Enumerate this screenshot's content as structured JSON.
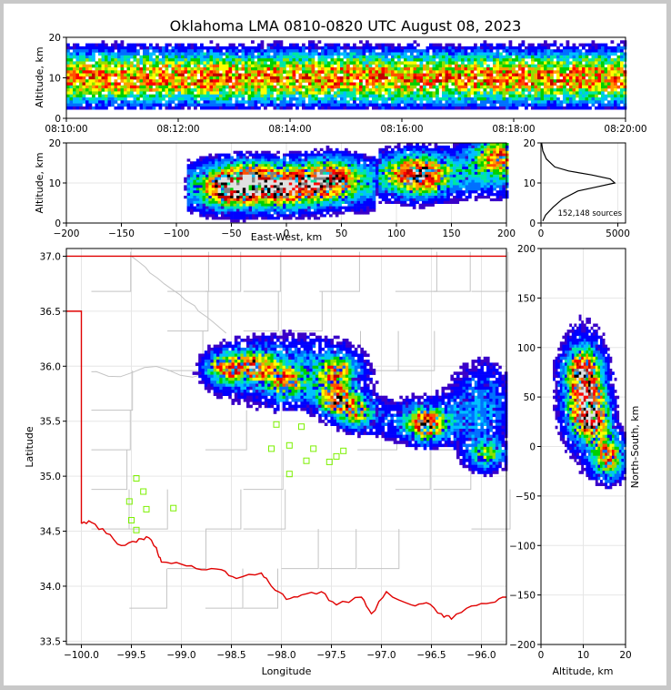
{
  "chart_data": [
    {
      "type": "heatmap",
      "panel": "time-altitude",
      "title": "Oklahoma LMA 0810-0820 UTC August 08, 2023",
      "ylabel": "Altitude, km",
      "xticks": [
        "08:10:00",
        "08:12:00",
        "08:14:00",
        "08:16:00",
        "08:18:00",
        "08:20:00"
      ],
      "yticks": [
        "0",
        "10",
        "20"
      ],
      "ylim": [
        0,
        20
      ],
      "band_center_km": 10,
      "band_halfwidth_km": 8
    },
    {
      "type": "heatmap",
      "panel": "east-west-altitude",
      "xlabel": "East-West, km",
      "ylabel": "Altitude, km",
      "xticks": [
        "−200",
        "−150",
        "−100",
        "−50",
        "0",
        "50",
        "100",
        "150",
        "200"
      ],
      "yticks": [
        "0",
        "10",
        "20"
      ],
      "xlim": [
        -200,
        200
      ],
      "ylim": [
        0,
        20
      ],
      "cores": [
        {
          "x": -52,
          "z": 9,
          "intensity": 0.95
        },
        {
          "x": -28,
          "z": 10,
          "intensity": 0.9
        },
        {
          "x": 5,
          "z": 9,
          "intensity": 0.85
        },
        {
          "x": 40,
          "z": 11,
          "intensity": 1.0
        },
        {
          "x": 120,
          "z": 12,
          "intensity": 1.0
        },
        {
          "x": 195,
          "z": 17,
          "intensity": 0.8
        }
      ]
    },
    {
      "type": "line",
      "panel": "altitude-histogram",
      "xticks": [
        "0",
        "5000"
      ],
      "yticks": [
        "0",
        "10",
        "20"
      ],
      "xlim": [
        0,
        5500
      ],
      "ylim": [
        0,
        20
      ],
      "annotation": "152,148 sources",
      "profile": [
        {
          "z": 0.5,
          "n": 120
        },
        {
          "z": 2,
          "n": 300
        },
        {
          "z": 4,
          "n": 800
        },
        {
          "z": 6,
          "n": 1400
        },
        {
          "z": 8,
          "n": 2400
        },
        {
          "z": 9,
          "n": 3600
        },
        {
          "z": 10,
          "n": 4800
        },
        {
          "z": 11,
          "n": 4500
        },
        {
          "z": 12,
          "n": 3300
        },
        {
          "z": 13,
          "n": 1800
        },
        {
          "z": 14,
          "n": 900
        },
        {
          "z": 16,
          "n": 350
        },
        {
          "z": 18,
          "n": 120
        },
        {
          "z": 20,
          "n": 40
        }
      ]
    },
    {
      "type": "heatmap",
      "panel": "plan-view",
      "xlabel": "Longitude",
      "ylabel": "Latitude",
      "xticks": [
        "−100.0",
        "−99.5",
        "−99.0",
        "−98.5",
        "−98.0",
        "−97.5",
        "−97.0",
        "−96.5",
        "−96.0"
      ],
      "yticks": [
        "33.5",
        "34.0",
        "34.5",
        "35.0",
        "35.5",
        "36.0",
        "36.5",
        "37.0"
      ],
      "xlim": [
        -100.15,
        -95.75
      ],
      "ylim": [
        33.47,
        37.07
      ],
      "cores": [
        {
          "lon": -98.55,
          "lat": 35.98,
          "intensity": 0.95
        },
        {
          "lon": -98.25,
          "lat": 36.0,
          "intensity": 0.9
        },
        {
          "lon": -97.95,
          "lat": 35.85,
          "intensity": 0.7
        },
        {
          "lon": -97.45,
          "lat": 35.95,
          "intensity": 0.8
        },
        {
          "lon": -97.45,
          "lat": 35.7,
          "intensity": 1.0
        },
        {
          "lon": -97.25,
          "lat": 35.58,
          "intensity": 0.75
        },
        {
          "lon": -96.55,
          "lat": 35.47,
          "intensity": 1.0
        },
        {
          "lon": -95.95,
          "lat": 35.2,
          "intensity": 0.6
        }
      ],
      "stations": [
        {
          "lon": -98.05,
          "lat": 35.47
        },
        {
          "lon": -97.8,
          "lat": 35.45
        },
        {
          "lon": -98.1,
          "lat": 35.25
        },
        {
          "lon": -97.92,
          "lat": 35.28
        },
        {
          "lon": -97.68,
          "lat": 35.25
        },
        {
          "lon": -97.38,
          "lat": 35.23
        },
        {
          "lon": -97.75,
          "lat": 35.14
        },
        {
          "lon": -97.52,
          "lat": 35.13
        },
        {
          "lon": -97.45,
          "lat": 35.18
        },
        {
          "lon": -97.92,
          "lat": 35.02
        },
        {
          "lon": -99.45,
          "lat": 34.98
        },
        {
          "lon": -99.38,
          "lat": 34.86
        },
        {
          "lon": -99.52,
          "lat": 34.77
        },
        {
          "lon": -99.35,
          "lat": 34.7
        },
        {
          "lon": -99.08,
          "lat": 34.71
        },
        {
          "lon": -99.5,
          "lat": 34.6
        },
        {
          "lon": -99.45,
          "lat": 34.51
        }
      ]
    },
    {
      "type": "heatmap",
      "panel": "altitude-north-south",
      "xlabel": "Altitude, km",
      "ylabel": "North-South, km",
      "xticks": [
        "0",
        "10",
        "20"
      ],
      "yticks": [
        "200",
        "150",
        "100",
        "50",
        "0",
        "−50",
        "−100",
        "−150",
        "−200"
      ],
      "xlim": [
        0,
        20
      ],
      "ylim": [
        -200,
        200
      ],
      "cores": [
        {
          "y": 76,
          "z": 10,
          "intensity": 1.0
        },
        {
          "y": 45,
          "z": 11,
          "intensity": 0.9
        },
        {
          "y": 25,
          "z": 12,
          "intensity": 0.95
        },
        {
          "y": -10,
          "z": 16,
          "intensity": 0.6
        }
      ]
    }
  ]
}
